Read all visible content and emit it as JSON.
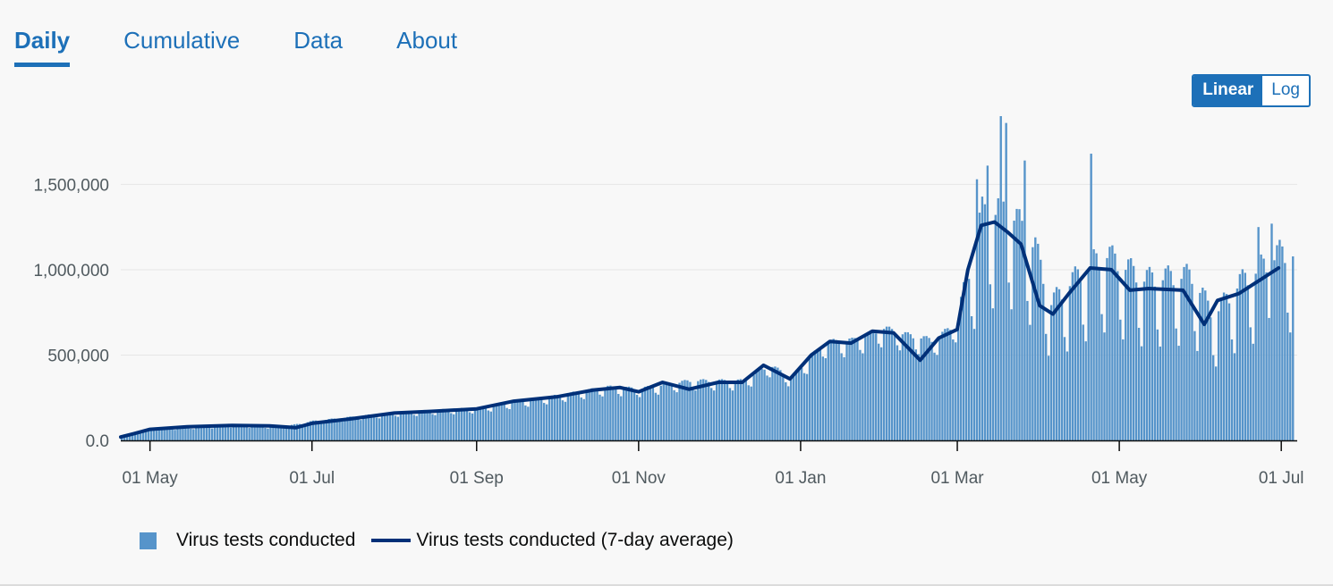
{
  "tabs": [
    {
      "label": "Daily",
      "active": true
    },
    {
      "label": "Cumulative",
      "active": false
    },
    {
      "label": "Data",
      "active": false
    },
    {
      "label": "About",
      "active": false
    }
  ],
  "scale": {
    "linear_label": "Linear",
    "log_label": "Log",
    "selected": "Linear"
  },
  "colors": {
    "accent": "#1d70b8",
    "bar": "#5694ca",
    "line": "#003078",
    "grid": "#e6e6e6"
  },
  "legend": {
    "bars_label": "Virus tests conducted",
    "line_label": "Virus tests conducted (7-day average)"
  },
  "chart_data": {
    "type": "bar",
    "title": "",
    "xlabel": "",
    "ylabel": "",
    "ylim": [
      0,
      1900000
    ],
    "yticks": [
      0,
      500000,
      1000000,
      1500000
    ],
    "ytick_labels": [
      "0.0",
      "500,000",
      "1,000,000",
      "1,500,000"
    ],
    "xlim": [
      "2020-04-20",
      "2021-07-07"
    ],
    "xticks": [
      "2020-05-01",
      "2020-07-01",
      "2020-09-01",
      "2020-11-01",
      "2021-01-01",
      "2021-03-01",
      "2021-05-01",
      "2021-07-01"
    ],
    "xtick_labels": [
      "01 May",
      "01 Jul",
      "01 Sep",
      "01 Nov",
      "01 Jan",
      "01 Mar",
      "01 May",
      "01 Jul"
    ],
    "grid": true,
    "legend_position": "bottom",
    "series": [
      {
        "name": "Virus tests conducted",
        "kind": "bar",
        "start": "2020-04-20",
        "end": "2021-07-05",
        "trend_x": [
          "2020-04-20",
          "2020-05-01",
          "2020-06-01",
          "2020-06-20",
          "2020-07-01",
          "2020-08-01",
          "2020-09-01",
          "2020-10-01",
          "2020-10-20",
          "2020-11-01",
          "2020-11-20",
          "2020-12-10",
          "2020-12-20",
          "2020-12-28",
          "2021-01-10",
          "2021-01-20",
          "2021-02-01",
          "2021-02-10",
          "2021-02-20",
          "2021-03-01",
          "2021-03-10",
          "2021-03-20",
          "2021-03-30",
          "2021-04-05",
          "2021-04-15",
          "2021-04-25",
          "2021-05-10",
          "2021-05-28",
          "2021-06-05",
          "2021-06-15",
          "2021-06-30"
        ],
        "trend_y": [
          30000,
          65000,
          88000,
          78000,
          110000,
          160000,
          185000,
          255000,
          305000,
          295000,
          340000,
          340000,
          430000,
          360000,
          560000,
          570000,
          640000,
          600000,
          570000,
          680000,
          1240000,
          1260000,
          1050000,
          750000,
          900000,
          1020000,
          880000,
          900000,
          680000,
          860000,
          1020000
        ],
        "peaks": [
          {
            "x": "2021-03-17",
            "y": 1900000
          },
          {
            "x": "2021-03-19",
            "y": 1860000
          },
          {
            "x": "2021-03-26",
            "y": 1640000
          },
          {
            "x": "2021-04-20",
            "y": 1680000
          },
          {
            "x": "2021-03-08",
            "y": 1530000
          },
          {
            "x": "2021-03-12",
            "y": 1610000
          },
          {
            "x": "2021-06-27",
            "y": 1270000
          },
          {
            "x": "2021-06-22",
            "y": 1250000
          }
        ]
      },
      {
        "name": "Virus tests conducted (7-day average)",
        "kind": "line",
        "x": [
          "2020-04-20",
          "2020-04-25",
          "2020-05-01",
          "2020-05-15",
          "2020-06-01",
          "2020-06-15",
          "2020-06-25",
          "2020-07-01",
          "2020-07-15",
          "2020-08-01",
          "2020-08-15",
          "2020-09-01",
          "2020-09-15",
          "2020-10-01",
          "2020-10-15",
          "2020-10-25",
          "2020-11-01",
          "2020-11-10",
          "2020-11-20",
          "2020-12-01",
          "2020-12-10",
          "2020-12-18",
          "2020-12-28",
          "2021-01-05",
          "2021-01-12",
          "2021-01-20",
          "2021-01-28",
          "2021-02-05",
          "2021-02-15",
          "2021-02-22",
          "2021-03-01",
          "2021-03-05",
          "2021-03-10",
          "2021-03-15",
          "2021-03-20",
          "2021-03-25",
          "2021-04-01",
          "2021-04-06",
          "2021-04-12",
          "2021-04-20",
          "2021-04-28",
          "2021-05-05",
          "2021-05-12",
          "2021-05-25",
          "2021-06-02",
          "2021-06-07",
          "2021-06-15",
          "2021-06-23",
          "2021-06-30"
        ],
        "y": [
          20000,
          40000,
          65000,
          80000,
          88000,
          85000,
          75000,
          100000,
          125000,
          160000,
          170000,
          185000,
          230000,
          255000,
          295000,
          310000,
          285000,
          340000,
          300000,
          340000,
          340000,
          440000,
          360000,
          500000,
          580000,
          570000,
          640000,
          630000,
          470000,
          600000,
          650000,
          1000000,
          1260000,
          1280000,
          1220000,
          1150000,
          790000,
          740000,
          860000,
          1010000,
          1000000,
          880000,
          890000,
          880000,
          680000,
          820000,
          860000,
          940000,
          1010000
        ]
      }
    ]
  }
}
